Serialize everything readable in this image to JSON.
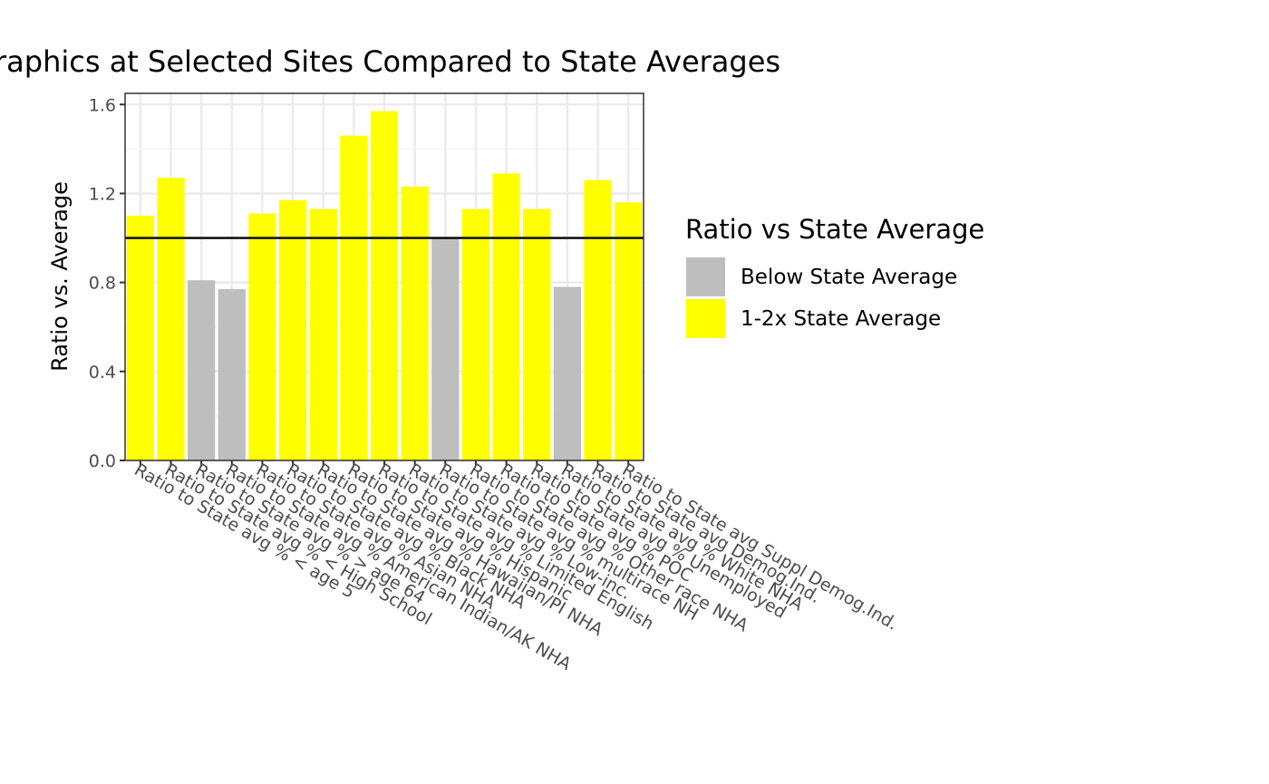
{
  "chart_data": {
    "type": "bar",
    "title": "raphics at Selected Sites Compared to State Averages",
    "ylabel": "Ratio vs. Average",
    "xlabel": "",
    "ylim": [
      0,
      1.65
    ],
    "yticks": [
      0.0,
      0.4,
      0.8,
      1.2,
      1.6
    ],
    "ytick_labels": [
      "0.0",
      "0.4",
      "0.8",
      "1.2",
      "1.6"
    ],
    "reference_line": 1.0,
    "grid": true,
    "categories": [
      "Ratio to State avg % < age 5",
      "Ratio to State avg % < High School",
      "Ratio to State avg % > age 64",
      "Ratio to State avg % American Indian/AK NHA",
      "Ratio to State avg % Asian NHA",
      "Ratio to State avg % Black NHA",
      "Ratio to State avg % Hawaiian/PI NHA",
      "Ratio to State avg % Hispanic",
      "Ratio to State avg % Limited English",
      "Ratio to State avg % Low-inc.",
      "Ratio to State avg % multirace NH",
      "Ratio to State avg % Other race NHA",
      "Ratio to State avg % POC",
      "Ratio to State avg % Unemployed",
      "Ratio to State avg % White NHA",
      "Ratio to State avg Demog.Ind.",
      "Ratio to State avg Suppl Demog.Ind."
    ],
    "values": [
      1.1,
      1.27,
      0.81,
      0.77,
      1.11,
      1.17,
      1.13,
      1.46,
      1.57,
      1.23,
      1.0,
      1.13,
      1.29,
      1.13,
      0.78,
      1.26,
      1.16
    ],
    "groups": [
      "1-2x State Average",
      "1-2x State Average",
      "Below State Average",
      "Below State Average",
      "1-2x State Average",
      "1-2x State Average",
      "1-2x State Average",
      "1-2x State Average",
      "1-2x State Average",
      "1-2x State Average",
      "Below State Average",
      "1-2x State Average",
      "1-2x State Average",
      "1-2x State Average",
      "Below State Average",
      "1-2x State Average",
      "1-2x State Average"
    ],
    "legend": {
      "title": "Ratio vs State Average",
      "placement": "right",
      "items": [
        {
          "label": "Below State Average",
          "color": "#bebebe"
        },
        {
          "label": "1-2x State Average",
          "color": "#ffff00"
        }
      ]
    },
    "colors": {
      "Below State Average": "#bebebe",
      "1-2x State Average": "#ffff00"
    }
  }
}
